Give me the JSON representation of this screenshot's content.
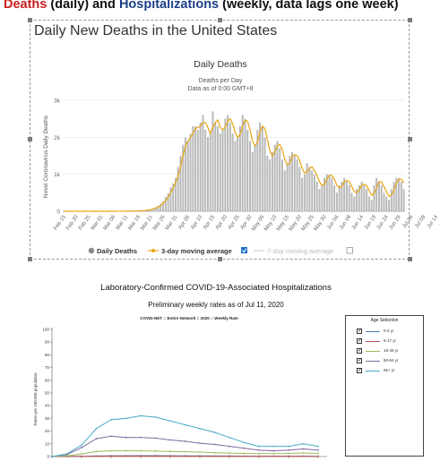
{
  "header": {
    "deaths_word": "Deaths",
    "mid_text": " (daily) and ",
    "hosp_word": "Hospitalizations",
    "end_text": " (weekly, data lags one week)"
  },
  "panel1": {
    "title": "Daily New Deaths in the United States"
  },
  "colors": {
    "bars": "#b8b8b8",
    "avg3": "#e8a612",
    "avg7": "#bdbdbd",
    "age_0_4": "#4b7fae",
    "age_5_17": "#c0504d",
    "age_18_49": "#9bbb59",
    "age_50_64": "#7f6aa0",
    "age_65": "#4bacc6"
  },
  "chart_data": [
    {
      "type": "bar",
      "title": "Daily Deaths",
      "subtitle": "Deaths per Day",
      "subtitle2": "Data as of 0:00 GMT+8",
      "ylabel": "Novel Coronavirus Daily Deaths",
      "ylim": [
        0,
        3000
      ],
      "yticks": [
        "0",
        "1k",
        "2k",
        "3k"
      ],
      "legend": [
        "Daily Deaths",
        "3-day moving average",
        "7-day moving average"
      ],
      "legend_placement": "bottom",
      "x_tick_labels": [
        "Feb 15",
        "Feb 20",
        "Feb 25",
        "Mar 01",
        "Mar 06",
        "Mar 11",
        "Mar 16",
        "Mar 21",
        "Mar 26",
        "Mar 31",
        "Apr 05",
        "Apr 10",
        "Apr 15",
        "Apr 20",
        "Apr 25",
        "Apr 30",
        "May 05",
        "May 10",
        "May 15",
        "May 20",
        "May 25",
        "May 30",
        "Jun 04",
        "Jun 09",
        "Jun 14",
        "Jun 19",
        "Jun 24",
        "Jun 29",
        "Jul 04",
        "Jul 09",
        "Jul 14",
        "Jul 19"
      ],
      "start_date": "Feb 15",
      "values": [
        0,
        0,
        0,
        0,
        0,
        0,
        0,
        0,
        0,
        0,
        0,
        0,
        0,
        0,
        0,
        0,
        0,
        0,
        1,
        1,
        0,
        2,
        1,
        3,
        2,
        4,
        4,
        5,
        8,
        10,
        12,
        15,
        22,
        28,
        45,
        60,
        80,
        110,
        150,
        210,
        270,
        390,
        480,
        650,
        750,
        900,
        1200,
        1500,
        1800,
        2000,
        1900,
        2100,
        2300,
        2300,
        2200,
        2400,
        2600,
        2200,
        2000,
        2100,
        2700,
        2400,
        2300,
        2100,
        2200,
        2500,
        2600,
        2400,
        2100,
        1900,
        2000,
        2300,
        2600,
        2500,
        2200,
        1900,
        1600,
        1800,
        2200,
        2400,
        2300,
        2000,
        1500,
        1400,
        1600,
        1800,
        1900,
        1700,
        1400,
        1100,
        1300,
        1500,
        1600,
        1500,
        1400,
        1200,
        900,
        1000,
        1300,
        1200,
        1100,
        1000,
        800,
        600,
        700,
        900,
        1000,
        1000,
        900,
        700,
        500,
        700,
        800,
        900,
        800,
        700,
        500,
        400,
        600,
        700,
        800,
        700,
        600,
        400,
        300,
        700,
        900,
        800,
        700,
        500,
        400,
        300,
        600,
        800,
        900,
        900,
        800,
        600
      ]
    },
    {
      "type": "line",
      "title": "Laboratory-Confirmed COVID-19-Associated Hospitalizations",
      "subtitle": "Preliminary weekly rates as of Jul 11, 2020",
      "chart_caption": "COVID-NET :: Entire Network :: 2020 :: Weekly Rate",
      "ylabel": "Rates per 100,000 population",
      "ylim": [
        0,
        100
      ],
      "yticks": [
        "0",
        "10",
        "20",
        "30",
        "40",
        "50",
        "60",
        "70",
        "80",
        "90",
        "100"
      ],
      "legend_title": "Age Selection",
      "series": [
        {
          "name": "0-4 yr",
          "values": [
            0,
            0,
            0.2,
            0.4,
            0.6,
            0.6,
            0.7,
            0.7,
            0.6,
            0.5,
            0.5,
            0.4,
            0.4,
            0.3,
            0.3,
            0.3,
            0.3,
            0.3,
            0.2
          ]
        },
        {
          "name": "5-17 yr",
          "values": [
            0,
            0.1,
            0.2,
            0.2,
            0.3,
            0.3,
            0.3,
            0.3,
            0.3,
            0.2,
            0.2,
            0.2,
            0.2,
            0.2,
            0.2,
            0.2,
            0.2,
            0.2,
            0.1
          ]
        },
        {
          "name": "18-49 yr",
          "values": [
            0,
            0.5,
            2,
            4,
            4.5,
            4.5,
            4.5,
            4.3,
            4,
            3.8,
            3.5,
            3,
            2.7,
            2.5,
            2.3,
            2.3,
            2.5,
            2.8,
            2.5
          ]
        },
        {
          "name": "50-64 yr",
          "values": [
            0,
            1.5,
            7,
            14,
            16,
            15,
            15,
            14.5,
            13,
            12,
            10.5,
            9.5,
            8,
            6.5,
            5,
            4.5,
            5,
            6,
            5
          ]
        },
        {
          "name": "65+ yr",
          "values": [
            0,
            2,
            9,
            22,
            29,
            30,
            32,
            31,
            28,
            25,
            22,
            19,
            15,
            11,
            8,
            8,
            8,
            10,
            8
          ]
        }
      ]
    }
  ]
}
